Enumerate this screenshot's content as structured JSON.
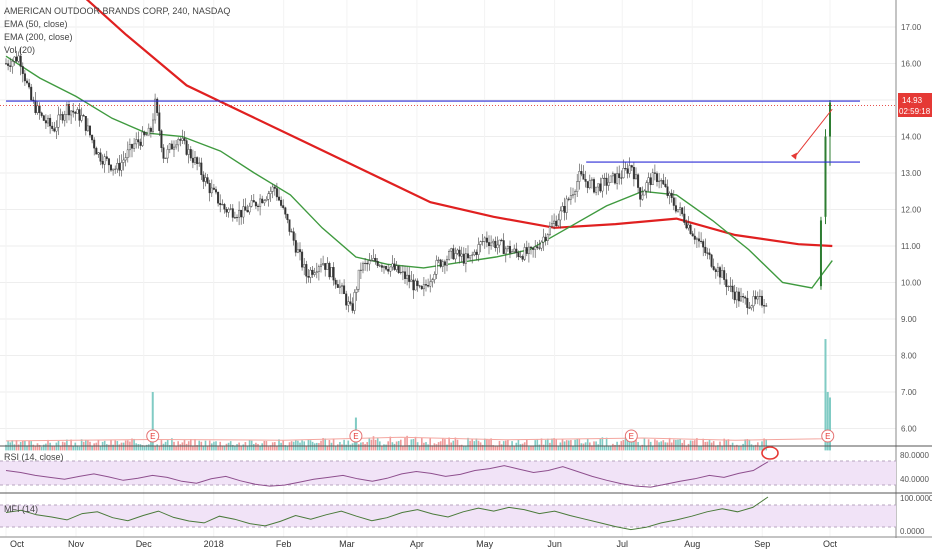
{
  "header": {
    "title": "AMERICAN OUTDOOR BRANDS CORP, 240, NASDAQ",
    "indicators": [
      "EMA (50, close)",
      "EMA (200, close)",
      "Vol (20)"
    ]
  },
  "price_badge": {
    "value": "14.93",
    "timer": "02:59:18"
  },
  "chart_data": [
    {
      "type": "candlestick",
      "title": "AMERICAN OUTDOOR BRANDS CORP, 240, NASDAQ",
      "x_ticks": [
        "Oct",
        "Nov",
        "Dec",
        "2018",
        "Feb",
        "Mar",
        "Apr",
        "May",
        "Jun",
        "Jul",
        "Aug",
        "Sep",
        "Oct"
      ],
      "y_ticks": [
        "17.00",
        "16.00",
        "15.00",
        "14.00",
        "13.00",
        "12.00",
        "11.00",
        "10.00",
        "9.00",
        "8.00",
        "7.00",
        "6.00"
      ],
      "ylim": [
        5.6,
        17.4
      ],
      "price_path": [
        {
          "d": "2017-10-01",
          "v": 16.0
        },
        {
          "d": "2017-10-07",
          "v": 16.2
        },
        {
          "d": "2017-10-12",
          "v": 15.0
        },
        {
          "d": "2017-10-17",
          "v": 14.5
        },
        {
          "d": "2017-10-22",
          "v": 14.2
        },
        {
          "d": "2017-10-28",
          "v": 14.8
        },
        {
          "d": "2017-11-04",
          "v": 14.5
        },
        {
          "d": "2017-11-11",
          "v": 13.5
        },
        {
          "d": "2017-11-19",
          "v": 13.1
        },
        {
          "d": "2017-11-27",
          "v": 13.8
        },
        {
          "d": "2017-12-04",
          "v": 14.1
        },
        {
          "d": "2017-12-06",
          "v": 14.9
        },
        {
          "d": "2017-12-10",
          "v": 13.4
        },
        {
          "d": "2017-12-16",
          "v": 14.0
        },
        {
          "d": "2017-12-24",
          "v": 13.3
        },
        {
          "d": "2017-12-30",
          "v": 12.6
        },
        {
          "d": "2018-01-06",
          "v": 12.0
        },
        {
          "d": "2018-01-14",
          "v": 11.9
        },
        {
          "d": "2018-01-22",
          "v": 12.3
        },
        {
          "d": "2018-01-28",
          "v": 12.6
        },
        {
          "d": "2018-02-04",
          "v": 11.4
        },
        {
          "d": "2018-02-11",
          "v": 10.2
        },
        {
          "d": "2018-02-18",
          "v": 10.6
        },
        {
          "d": "2018-02-25",
          "v": 10.0
        },
        {
          "d": "2018-03-03",
          "v": 9.2
        },
        {
          "d": "2018-03-07",
          "v": 10.4
        },
        {
          "d": "2018-03-14",
          "v": 10.6
        },
        {
          "d": "2018-03-21",
          "v": 10.4
        },
        {
          "d": "2018-03-28",
          "v": 10.1
        },
        {
          "d": "2018-04-03",
          "v": 9.7
        },
        {
          "d": "2018-04-10",
          "v": 10.5
        },
        {
          "d": "2018-04-17",
          "v": 10.8
        },
        {
          "d": "2018-04-24",
          "v": 10.6
        },
        {
          "d": "2018-05-01",
          "v": 11.2
        },
        {
          "d": "2018-05-08",
          "v": 11.0
        },
        {
          "d": "2018-05-15",
          "v": 10.8
        },
        {
          "d": "2018-05-22",
          "v": 10.8
        },
        {
          "d": "2018-05-29",
          "v": 11.4
        },
        {
          "d": "2018-06-05",
          "v": 12.0
        },
        {
          "d": "2018-06-12",
          "v": 12.9
        },
        {
          "d": "2018-06-19",
          "v": 12.6
        },
        {
          "d": "2018-06-26",
          "v": 12.8
        },
        {
          "d": "2018-07-02",
          "v": 13.0
        },
        {
          "d": "2018-07-05",
          "v": 13.25
        },
        {
          "d": "2018-07-09",
          "v": 12.4
        },
        {
          "d": "2018-07-13",
          "v": 12.8
        },
        {
          "d": "2018-07-17",
          "v": 12.9
        },
        {
          "d": "2018-07-22",
          "v": 12.3
        },
        {
          "d": "2018-07-27",
          "v": 11.9
        },
        {
          "d": "2018-08-01",
          "v": 11.4
        },
        {
          "d": "2018-08-07",
          "v": 10.8
        },
        {
          "d": "2018-08-13",
          "v": 10.3
        },
        {
          "d": "2018-08-18",
          "v": 9.8
        },
        {
          "d": "2018-08-23",
          "v": 9.5
        },
        {
          "d": "2018-08-28",
          "v": 9.45
        },
        {
          "d": "2018-09-03",
          "v": 9.5
        },
        {
          "d": "2018-09-08",
          "v": 9.7
        },
        {
          "d": "2018-09-13",
          "v": 10.1
        },
        {
          "d": "2018-09-16",
          "v": 9.7
        },
        {
          "d": "2018-09-20",
          "v": 9.6
        },
        {
          "d": "2018-09-23",
          "v": 10.2
        },
        {
          "d": "2018-09-25",
          "v": 9.9
        },
        {
          "d": "2018-09-28",
          "v": 12.0
        },
        {
          "d": "2018-10-01",
          "v": 14.9
        }
      ],
      "ema50": [
        {
          "d": "2017-10-01",
          "v": 16.2
        },
        {
          "d": "2017-10-16",
          "v": 15.6
        },
        {
          "d": "2017-11-01",
          "v": 15.1
        },
        {
          "d": "2017-11-17",
          "v": 14.5
        },
        {
          "d": "2017-12-02",
          "v": 14.1
        },
        {
          "d": "2017-12-18",
          "v": 14.0
        },
        {
          "d": "2018-01-04",
          "v": 13.6
        },
        {
          "d": "2018-01-19",
          "v": 13.0
        },
        {
          "d": "2018-02-04",
          "v": 12.4
        },
        {
          "d": "2018-02-18",
          "v": 11.5
        },
        {
          "d": "2018-03-05",
          "v": 10.7
        },
        {
          "d": "2018-03-19",
          "v": 10.5
        },
        {
          "d": "2018-04-04",
          "v": 10.4
        },
        {
          "d": "2018-04-20",
          "v": 10.55
        },
        {
          "d": "2018-05-06",
          "v": 10.7
        },
        {
          "d": "2018-05-21",
          "v": 10.9
        },
        {
          "d": "2018-06-07",
          "v": 11.5
        },
        {
          "d": "2018-06-24",
          "v": 12.1
        },
        {
          "d": "2018-07-10",
          "v": 12.5
        },
        {
          "d": "2018-07-25",
          "v": 12.4
        },
        {
          "d": "2018-08-10",
          "v": 11.7
        },
        {
          "d": "2018-08-26",
          "v": 10.9
        },
        {
          "d": "2018-09-10",
          "v": 10.0
        },
        {
          "d": "2018-09-23",
          "v": 9.85
        },
        {
          "d": "2018-10-02",
          "v": 10.6
        }
      ],
      "ema200": [
        {
          "d": "2017-10-01",
          "v": 19.3
        },
        {
          "d": "2017-10-27",
          "v": 18.3
        },
        {
          "d": "2017-11-23",
          "v": 16.8
        },
        {
          "d": "2017-12-20",
          "v": 15.4
        },
        {
          "d": "2018-01-16",
          "v": 14.6
        },
        {
          "d": "2018-02-12",
          "v": 13.8
        },
        {
          "d": "2018-03-11",
          "v": 13.0
        },
        {
          "d": "2018-04-07",
          "v": 12.2
        },
        {
          "d": "2018-05-05",
          "v": 11.8
        },
        {
          "d": "2018-06-01",
          "v": 11.5
        },
        {
          "d": "2018-06-28",
          "v": 11.6
        },
        {
          "d": "2018-07-25",
          "v": 11.75
        },
        {
          "d": "2018-08-20",
          "v": 11.3
        },
        {
          "d": "2018-09-17",
          "v": 11.05
        },
        {
          "d": "2018-10-02",
          "v": 11.0
        }
      ],
      "levels": [
        {
          "name": "resistance",
          "value": 14.97,
          "from": "2017-10-01",
          "to": "2018-10-28"
        },
        {
          "name": "target",
          "value": 13.3,
          "from": "2018-06-15",
          "to": "2018-10-28"
        }
      ],
      "volume": {
        "baseline": [
          {
            "d": "2017-10-01",
            "v": 5.62
          },
          {
            "d": "2017-12-05",
            "v": 5.66
          },
          {
            "d": "2018-02-01",
            "v": 5.64
          },
          {
            "d": "2018-03-25",
            "v": 5.72
          },
          {
            "d": "2018-05-10",
            "v": 5.65
          },
          {
            "d": "2018-07-10",
            "v": 5.7
          },
          {
            "d": "2018-08-20",
            "v": 5.64
          },
          {
            "d": "2018-09-28",
            "v": 5.68
          },
          {
            "d": "2018-10-01",
            "v": 5.8
          }
        ],
        "spikes": [
          {
            "d": "2017-12-05",
            "v": 7.0
          },
          {
            "d": "2018-03-05",
            "v": 6.3
          },
          {
            "d": "2018-09-29",
            "v": 8.45
          },
          {
            "d": "2018-09-30",
            "v": 7.0
          },
          {
            "d": "2018-10-01",
            "v": 6.85
          }
        ]
      },
      "earnings": [
        {
          "d": "2017-12-05",
          "label": "E"
        },
        {
          "d": "2018-03-05",
          "label": "E"
        },
        {
          "d": "2018-07-05",
          "label": "E"
        },
        {
          "d": "2018-09-30",
          "label": "E"
        }
      ],
      "price_badge_color": "#e53935"
    },
    {
      "type": "line",
      "title": "RSI (14, close)",
      "y_ticks": [
        "80.0000",
        "40.0000"
      ],
      "ylim": [
        20,
        100
      ],
      "band": [
        30,
        70
      ],
      "series": [
        {
          "values": [
            62,
            58,
            52,
            48,
            44,
            50,
            55,
            49,
            42,
            46,
            52,
            48,
            40,
            36,
            45,
            50,
            41,
            34,
            30,
            32,
            38,
            44,
            48,
            52,
            45,
            40,
            46,
            55,
            60,
            56,
            50,
            54,
            62,
            66,
            72,
            65,
            58,
            62,
            70,
            60,
            50,
            42,
            35,
            30,
            28,
            34,
            40,
            45,
            52,
            48,
            56,
            62,
            80
          ]
        }
      ]
    },
    {
      "type": "line",
      "title": "MFI (14)",
      "y_ticks": [
        "100.0000",
        "0.0000"
      ],
      "ylim": [
        0,
        100
      ],
      "band": [
        20,
        80
      ],
      "series": [
        {
          "values": [
            58,
            64,
            52,
            46,
            38,
            55,
            60,
            44,
            36,
            50,
            62,
            45,
            35,
            30,
            48,
            40,
            28,
            22,
            34,
            50,
            40,
            52,
            62,
            48,
            36,
            44,
            58,
            66,
            54,
            46,
            60,
            70,
            62,
            72,
            66,
            55,
            62,
            50,
            40,
            30,
            20,
            12,
            18,
            30,
            38,
            48,
            60,
            68,
            60,
            72,
            100
          ]
        }
      ]
    }
  ]
}
